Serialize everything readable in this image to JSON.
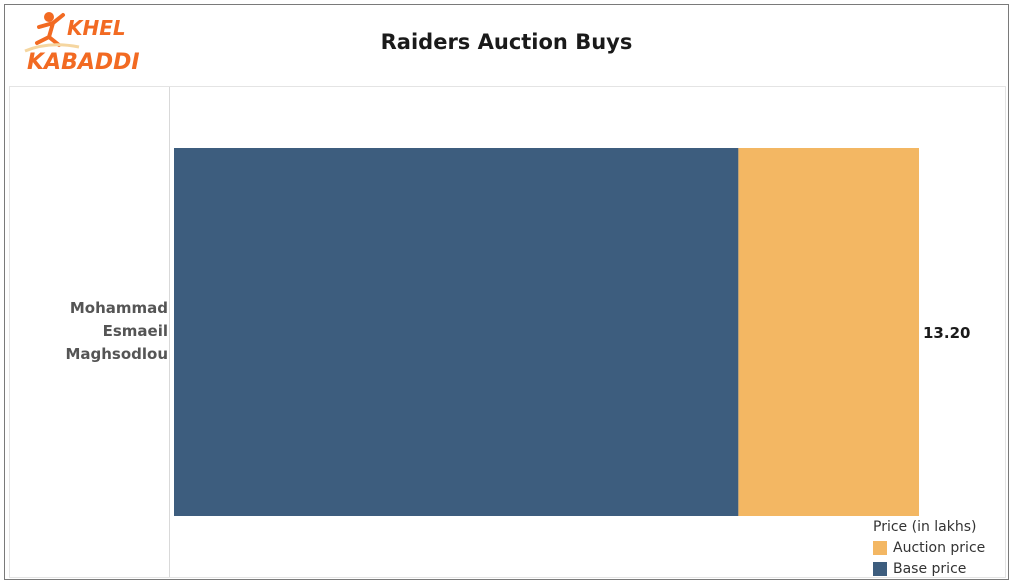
{
  "header": {
    "logo_line1": "KHEL",
    "logo_line2": "KABADDI",
    "title": "Raiders Auction Buys"
  },
  "colors": {
    "base": "#3d5d7e",
    "auction": "#f3b763",
    "logo_orange": "#f26a22"
  },
  "chart_data": {
    "type": "bar",
    "orientation": "horizontal",
    "stacked": true,
    "categories": [
      "Mohammad Esmaeil Maghsodlou"
    ],
    "category_lines": [
      "Mohammad",
      "Esmaeil",
      "Maghsodlou"
    ],
    "series": [
      {
        "name": "Base price",
        "values": [
          10.0
        ],
        "color": "#3d5d7e"
      },
      {
        "name": "Auction price",
        "values": [
          3.2
        ],
        "color": "#f3b763"
      }
    ],
    "total_label": "13.20",
    "xlim": [
      0,
      13.2
    ],
    "title": "Raiders Auction Buys",
    "legend": {
      "title": "Price (in lakhs)",
      "position": "bottom-right",
      "items": [
        "Auction price",
        "Base price"
      ]
    },
    "grid": false
  }
}
